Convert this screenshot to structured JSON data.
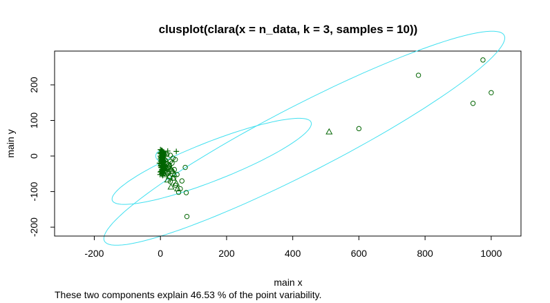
{
  "chart_data": {
    "type": "scatter",
    "title": "clusplot(clara(x = n_data, k = 3, samples = 10))",
    "xlabel": "main x",
    "ylabel": "main y",
    "caption": "These two components explain 46.53 % of the point variability.",
    "xlim": [
      -320,
      1090
    ],
    "ylim": [
      -225,
      295
    ],
    "x_ticks": [
      -200,
      0,
      200,
      400,
      600,
      800,
      1000
    ],
    "y_ticks": [
      -200,
      -100,
      0,
      100,
      200
    ],
    "grid": false,
    "ellipse_color": "#40e0f0",
    "point_color": "#006400",
    "ellipses": [
      {
        "cluster": 1,
        "center": [
          435,
          50
        ],
        "semi_axes": [
          670,
          95
        ],
        "angle_deg": 25.5
      },
      {
        "cluster": 2,
        "center": [
          155,
          -15
        ],
        "semi_axes": [
          320,
          55
        ],
        "angle_deg": 20
      },
      {
        "cluster": 3,
        "center": [
          0,
          0
        ],
        "semi_axes": [
          14,
          14
        ],
        "angle_deg": 0
      }
    ],
    "series": [
      {
        "marker": "circle",
        "x": [
          975,
          780,
          1000,
          945,
          600,
          80,
          78,
          75,
          55,
          60,
          45,
          30,
          40,
          50,
          35,
          25,
          20,
          15,
          65,
          30,
          45,
          20,
          35,
          28,
          18,
          10,
          42,
          22,
          12,
          5,
          30,
          38,
          26,
          16,
          8
        ],
        "y": [
          270,
          227,
          178,
          148,
          77,
          -170,
          -103,
          -32,
          -102,
          -92,
          -82,
          -72,
          -62,
          -52,
          -42,
          -32,
          -22,
          -12,
          -70,
          2,
          -10,
          5,
          -20,
          -28,
          -36,
          -18,
          -38,
          -50,
          -44,
          -8,
          -15,
          -6,
          -24,
          -30,
          -14
        ]
      },
      {
        "marker": "triangle",
        "x": [
          510,
          52,
          32,
          48,
          22,
          38,
          27,
          12,
          17,
          7,
          32,
          42,
          22,
          2,
          14,
          24,
          37,
          9
        ],
        "y": [
          68,
          -92,
          -87,
          -77,
          -67,
          -62,
          -57,
          -52,
          -47,
          -42,
          -37,
          -52,
          -27,
          -22,
          -34,
          -44,
          -42,
          -30
        ]
      },
      {
        "marker": "plus",
        "x": [
          0,
          5,
          10,
          2,
          -2,
          8,
          12,
          15,
          6,
          3,
          0,
          4,
          9,
          13,
          7,
          -3,
          1,
          11,
          16,
          5,
          2,
          8,
          14,
          6,
          3,
          0,
          10,
          4,
          -1,
          7,
          12,
          9,
          5,
          1,
          3,
          8,
          6,
          2,
          11,
          4,
          0,
          7,
          13,
          9,
          5,
          3,
          1,
          10,
          6,
          2,
          8,
          4,
          12,
          7,
          3,
          5,
          9,
          1,
          6,
          11,
          22,
          48
        ],
        "y": [
          18,
          15,
          12,
          10,
          8,
          5,
          3,
          0,
          -2,
          -5,
          -8,
          -10,
          -12,
          -15,
          -18,
          -20,
          -22,
          -25,
          -28,
          -30,
          -32,
          -35,
          -38,
          -40,
          -42,
          -45,
          -48,
          -50,
          -52,
          -55,
          -10,
          8,
          2,
          -3,
          -28,
          -18,
          14,
          6,
          -6,
          -38,
          0,
          -14,
          4,
          -24,
          -46,
          -33,
          -16,
          10,
          -20,
          -12,
          -40,
          1,
          -30,
          -4,
          16,
          -26,
          -36,
          -44,
          -8,
          7,
          14,
          13
        ]
      }
    ]
  }
}
